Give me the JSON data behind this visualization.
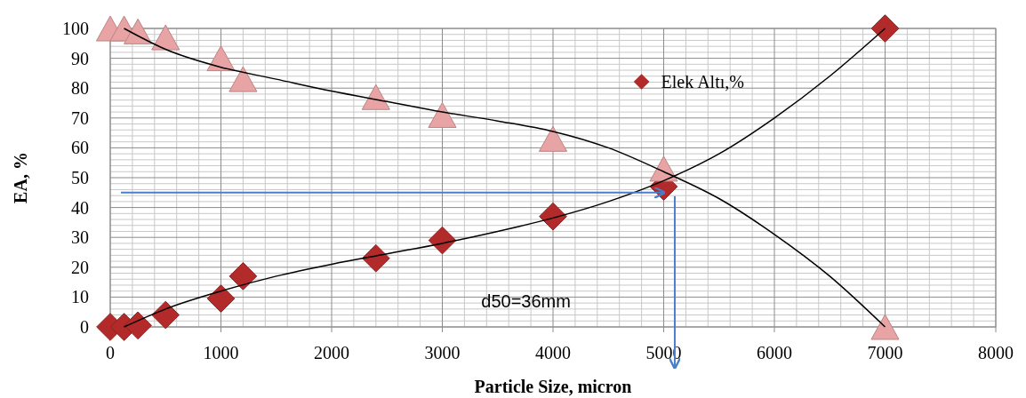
{
  "chart_data": {
    "type": "scatter",
    "xlabel": "Particle Size, micron",
    "ylabel": "EA, %",
    "xlim": [
      0,
      8000
    ],
    "ylim": [
      0,
      100
    ],
    "xticks": [
      0,
      1000,
      2000,
      3000,
      4000,
      5000,
      6000,
      7000,
      8000
    ],
    "yticks": [
      0,
      10,
      20,
      30,
      40,
      50,
      60,
      70,
      80,
      90,
      100
    ],
    "grid": true,
    "legend": "top",
    "annotations": [
      "d50=36mm"
    ],
    "ref_lines": [
      {
        "axis": "y",
        "value": 45,
        "color": "#4a7ec8"
      },
      {
        "axis": "x",
        "value": 5100,
        "color": "#4a7ec8"
      }
    ],
    "series": [
      {
        "name": "Elek Altı,%",
        "color": "#b22a2a",
        "marker": "diamond",
        "x": [
          0,
          125,
          250,
          500,
          1000,
          1200,
          2400,
          3000,
          4000,
          5000,
          7000
        ],
        "values": [
          0,
          0,
          0.5,
          4,
          9.5,
          17,
          23,
          29,
          37,
          47,
          100
        ]
      },
      {
        "color": "#e8a4a4",
        "marker": "triangle",
        "x": [
          0,
          125,
          250,
          500,
          1000,
          1200,
          2400,
          3000,
          4000,
          5000,
          7000
        ],
        "values": [
          100,
          100,
          99,
          97,
          90,
          83,
          77,
          71,
          63,
          53,
          0
        ]
      },
      {
        "type": "line",
        "color": "#000000",
        "marker": "none",
        "x": [
          125,
          500,
          1000,
          1500,
          2000,
          2500,
          3000,
          3500,
          4000,
          4500,
          5000,
          5500,
          6000,
          6500,
          7000
        ],
        "values": [
          0,
          6,
          12,
          17,
          21,
          24.5,
          28,
          32,
          36.5,
          42,
          49,
          58,
          70,
          84,
          100
        ]
      },
      {
        "type": "line",
        "color": "#000000",
        "marker": "none",
        "x": [
          125,
          500,
          1000,
          1500,
          2000,
          2500,
          3000,
          3500,
          4000,
          4500,
          5000,
          5500,
          6000,
          6500,
          7000
        ],
        "values": [
          100,
          93,
          87,
          83,
          79,
          75.5,
          72,
          69,
          65.5,
          60,
          52,
          43,
          31,
          17,
          0
        ]
      }
    ]
  }
}
